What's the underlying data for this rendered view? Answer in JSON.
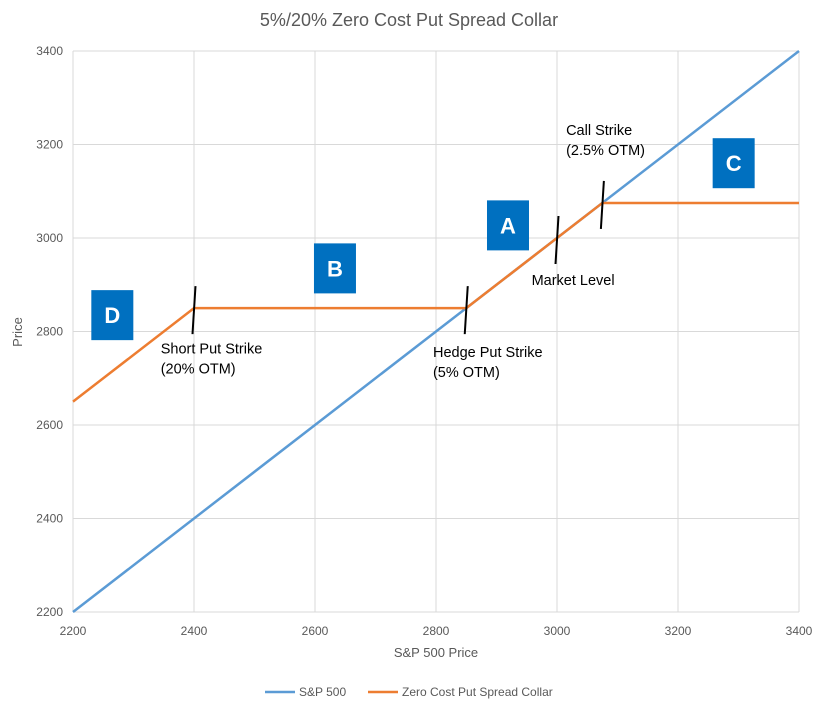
{
  "chart_data": {
    "type": "line",
    "title": "5%/20% Zero Cost Put Spread Collar",
    "xlabel": "S&P 500 Price",
    "ylabel": "Price",
    "xlim": [
      2200,
      3400
    ],
    "ylim": [
      2200,
      3400
    ],
    "x_ticks": [
      2200,
      2400,
      2600,
      2800,
      3000,
      3200,
      3400
    ],
    "y_ticks": [
      2200,
      2400,
      2600,
      2800,
      3000,
      3200,
      3400
    ],
    "grid": true,
    "legend_position": "bottom",
    "series": [
      {
        "name": "S&P 500",
        "color": "#5B9BD5",
        "points": [
          [
            2200,
            2200
          ],
          [
            3400,
            3400
          ]
        ]
      },
      {
        "name": "Zero Cost Put Spread Collar",
        "color": "#ED7D31",
        "points": [
          [
            2200,
            2650
          ],
          [
            2400,
            2850
          ],
          [
            2850,
            2850
          ],
          [
            3075,
            3075
          ],
          [
            3400,
            3075
          ]
        ]
      }
    ],
    "markers": [
      {
        "x": 2400,
        "y": 2850
      },
      {
        "x": 2850,
        "y": 2850
      },
      {
        "x": 3000,
        "y": 3000
      },
      {
        "x": 3075,
        "y": 3075
      }
    ],
    "annotations": [
      {
        "lines": [
          "Short Put Strike",
          "(20% OTM)"
        ],
        "x": 2345,
        "y": 2753
      },
      {
        "lines": [
          "Hedge Put Strike",
          "(5% OTM)"
        ],
        "x": 2795,
        "y": 2745
      },
      {
        "lines": [
          "Market Level"
        ],
        "x": 2958,
        "y": 2900
      },
      {
        "lines": [
          "Call Strike",
          "(2.5% OTM)"
        ],
        "x": 3015,
        "y": 3220
      }
    ],
    "badges": [
      {
        "label": "D",
        "x": 2265,
        "y": 2835
      },
      {
        "label": "B",
        "x": 2633,
        "y": 2935
      },
      {
        "label": "A",
        "x": 2919,
        "y": 3027
      },
      {
        "label": "C",
        "x": 3292,
        "y": 3160
      }
    ],
    "badge_color": "#0070C0"
  }
}
